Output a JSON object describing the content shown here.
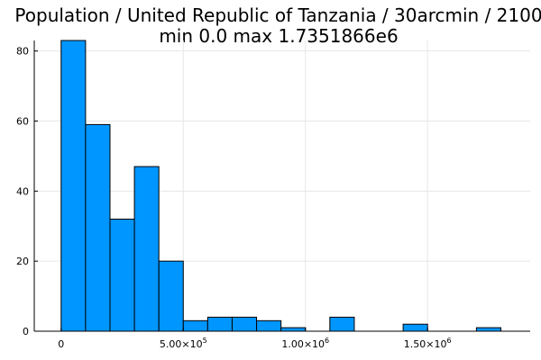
{
  "chart_data": {
    "type": "bar",
    "title_line1": "Population / United Republic of Tanzania / 30arcmin / 2100",
    "title_line2": "min 0.0  max 1.7351866e6",
    "xlabel": "",
    "ylabel": "",
    "xlim": [
      -110000,
      1920000
    ],
    "ylim": [
      0,
      83
    ],
    "grid": true,
    "legend": "none",
    "bar_color": "#0096FF",
    "bin_width": 100000,
    "bins": [
      {
        "x0": 0,
        "x1": 100000,
        "count": 83
      },
      {
        "x0": 100000,
        "x1": 200000,
        "count": 59
      },
      {
        "x0": 200000,
        "x1": 300000,
        "count": 32
      },
      {
        "x0": 300000,
        "x1": 400000,
        "count": 47
      },
      {
        "x0": 400000,
        "x1": 500000,
        "count": 20
      },
      {
        "x0": 500000,
        "x1": 600000,
        "count": 3
      },
      {
        "x0": 600000,
        "x1": 700000,
        "count": 4
      },
      {
        "x0": 700000,
        "x1": 800000,
        "count": 4
      },
      {
        "x0": 800000,
        "x1": 900000,
        "count": 3
      },
      {
        "x0": 900000,
        "x1": 1000000,
        "count": 1
      },
      {
        "x0": 1000000,
        "x1": 1100000,
        "count": 0
      },
      {
        "x0": 1100000,
        "x1": 1200000,
        "count": 4
      },
      {
        "x0": 1200000,
        "x1": 1300000,
        "count": 0
      },
      {
        "x0": 1300000,
        "x1": 1400000,
        "count": 0
      },
      {
        "x0": 1400000,
        "x1": 1500000,
        "count": 2
      },
      {
        "x0": 1500000,
        "x1": 1600000,
        "count": 0
      },
      {
        "x0": 1600000,
        "x1": 1700000,
        "count": 0
      },
      {
        "x0": 1700000,
        "x1": 1800000,
        "count": 1
      }
    ],
    "x_ticks": [
      {
        "value": 0,
        "label": "0",
        "sup": ""
      },
      {
        "value": 500000,
        "label": "5.00×10",
        "sup": "5"
      },
      {
        "value": 1000000,
        "label": "1.00×10",
        "sup": "6"
      },
      {
        "value": 1500000,
        "label": "1.50×10",
        "sup": "6"
      }
    ],
    "y_ticks": [
      {
        "value": 0,
        "label": "0"
      },
      {
        "value": 20,
        "label": "20"
      },
      {
        "value": 40,
        "label": "40"
      },
      {
        "value": 60,
        "label": "60"
      },
      {
        "value": 80,
        "label": "80"
      }
    ]
  }
}
